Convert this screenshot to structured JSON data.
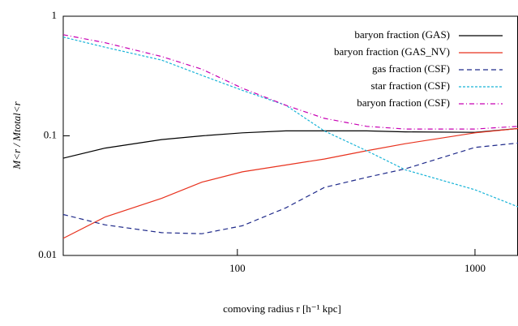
{
  "chart_data": {
    "type": "line",
    "log_x": true,
    "log_y": true,
    "x_label": "comoving radius r  [h⁻¹ kpc]",
    "y_label": "M<r / Mtotal<r",
    "xlim": [
      18.5,
      1517
    ],
    "ylim": [
      0.01,
      1
    ],
    "xticks": [
      100,
      1000
    ],
    "yticks": [
      0.01,
      0.1,
      1
    ],
    "legend": "upper right",
    "x": [
      18.5,
      27.8,
      48,
      71,
      105,
      160,
      232,
      350,
      509,
      1000,
      1517
    ],
    "series": [
      {
        "name": "baryon fraction (GAS)",
        "color": "#000000",
        "dash": "none",
        "values": [
          0.065,
          0.079,
          0.093,
          0.1,
          0.106,
          0.11,
          0.11,
          0.11,
          0.108,
          0.107,
          0.115
        ]
      },
      {
        "name": "baryon fraction (GAS_NV)",
        "color": "#e8321e",
        "dash": "none",
        "values": [
          0.0139,
          0.021,
          0.03,
          0.041,
          0.05,
          0.057,
          0.064,
          0.075,
          0.086,
          0.106,
          0.115
        ]
      },
      {
        "name": "gas fraction (CSF)",
        "color": "#1f2a8a",
        "dash": "6,4",
        "values": [
          0.022,
          0.018,
          0.0155,
          0.0152,
          0.0177,
          0.025,
          0.037,
          0.045,
          0.053,
          0.08,
          0.087
        ]
      },
      {
        "name": "star fraction (CSF)",
        "color": "#19b4d8",
        "dash": "3,2",
        "values": [
          0.67,
          0.55,
          0.43,
          0.32,
          0.24,
          0.18,
          0.11,
          0.075,
          0.052,
          0.0354,
          0.0255
        ]
      },
      {
        "name": "baryon fraction (CSF)",
        "color": "#c800b4",
        "dash": "6,3,1,3",
        "values": [
          0.7,
          0.6,
          0.46,
          0.36,
          0.25,
          0.18,
          0.14,
          0.12,
          0.114,
          0.114,
          0.12
        ]
      }
    ]
  }
}
